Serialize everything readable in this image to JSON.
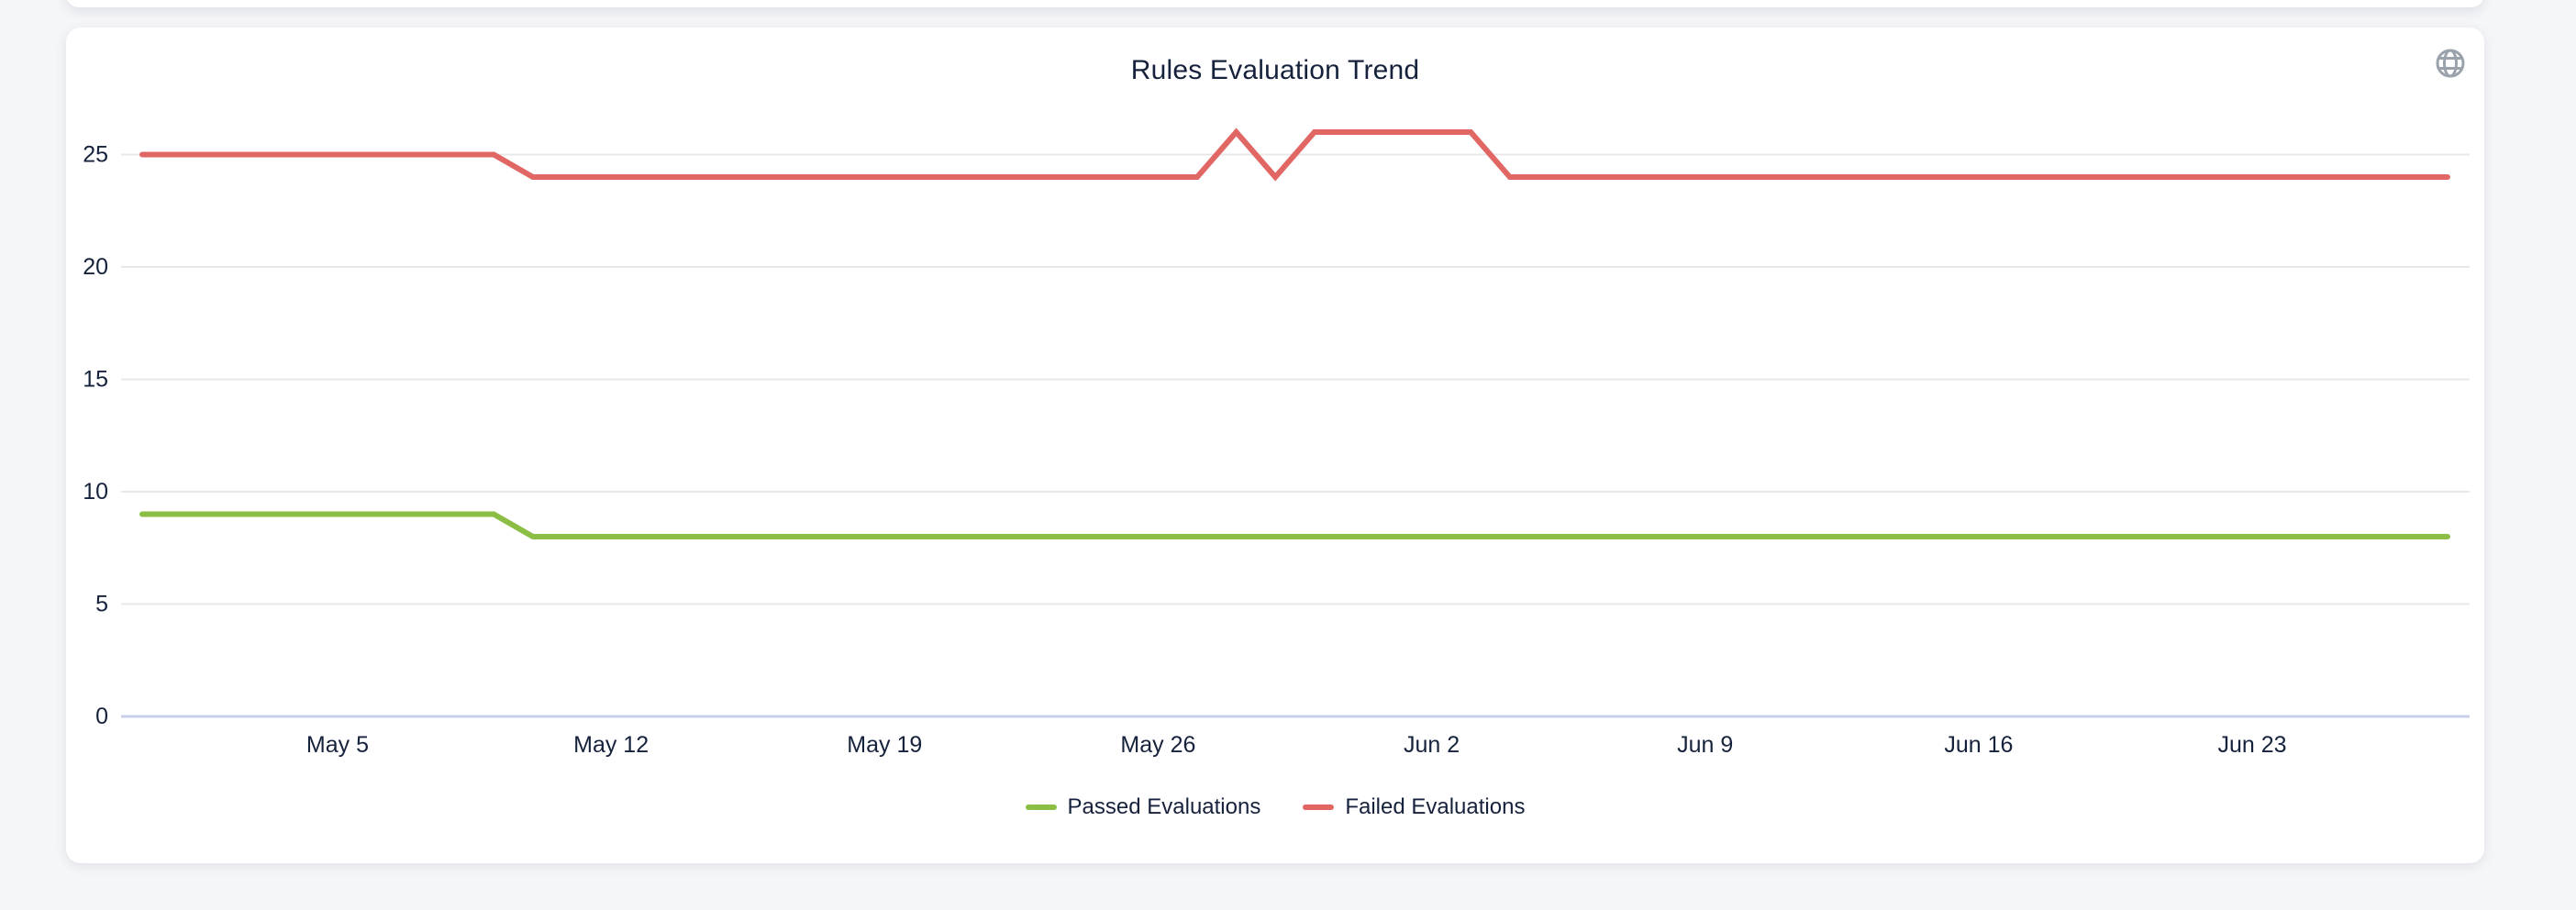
{
  "page": {
    "background_color": "#f5f6f9",
    "card_color": "#ffffff"
  },
  "header": {
    "globe_icon": "globe-icon",
    "globe_color": "#9aa2ac"
  },
  "chart_data": {
    "type": "line",
    "title": "Rules Evaluation Trend",
    "xlabel": "",
    "ylabel": "",
    "grid": true,
    "legend_position": "bottom",
    "ylim": [
      0,
      27
    ],
    "yticks": [
      0,
      5,
      10,
      15,
      20,
      25
    ],
    "xticks": {
      "labels": [
        "May 5",
        "May 12",
        "May 19",
        "May 26",
        "Jun 2",
        "Jun 9",
        "Jun 16",
        "Jun 23"
      ],
      "indices": [
        5,
        12,
        19,
        26,
        33,
        40,
        47,
        54
      ]
    },
    "x": [
      "Apr 30",
      "May 1",
      "May 2",
      "May 3",
      "May 4",
      "May 5",
      "May 6",
      "May 7",
      "May 8",
      "May 9",
      "May 10",
      "May 11",
      "May 12",
      "May 13",
      "May 14",
      "May 15",
      "May 16",
      "May 17",
      "May 18",
      "May 19",
      "May 20",
      "May 21",
      "May 22",
      "May 23",
      "May 24",
      "May 25",
      "May 26",
      "May 27",
      "May 28",
      "May 29",
      "May 30",
      "May 31",
      "Jun 1",
      "Jun 2",
      "Jun 3",
      "Jun 4",
      "Jun 5",
      "Jun 6",
      "Jun 7",
      "Jun 8",
      "Jun 9",
      "Jun 10",
      "Jun 11",
      "Jun 12",
      "Jun 13",
      "Jun 14",
      "Jun 15",
      "Jun 16",
      "Jun 17",
      "Jun 18",
      "Jun 19",
      "Jun 20",
      "Jun 21",
      "Jun 22",
      "Jun 23",
      "Jun 24",
      "Jun 25",
      "Jun 26",
      "Jun 27",
      "Jun 28"
    ],
    "series": [
      {
        "name": "Passed Evaluations",
        "color": "#8cbd45",
        "values": [
          9,
          9,
          9,
          9,
          9,
          9,
          9,
          9,
          9,
          9,
          8,
          8,
          8,
          8,
          8,
          8,
          8,
          8,
          8,
          8,
          8,
          8,
          8,
          8,
          8,
          8,
          8,
          8,
          8,
          8,
          8,
          8,
          8,
          8,
          8,
          8,
          8,
          8,
          8,
          8,
          8,
          8,
          8,
          8,
          8,
          8,
          8,
          8,
          8,
          8,
          8,
          8,
          8,
          8,
          8,
          8,
          8,
          8,
          8,
          8
        ]
      },
      {
        "name": "Failed Evaluations",
        "color": "#e16765",
        "values": [
          25,
          25,
          25,
          25,
          25,
          25,
          25,
          25,
          25,
          25,
          24,
          24,
          24,
          24,
          24,
          24,
          24,
          24,
          24,
          24,
          24,
          24,
          24,
          24,
          24,
          24,
          24,
          24,
          26,
          24,
          26,
          26,
          26,
          26,
          26,
          24,
          24,
          24,
          24,
          24,
          24,
          24,
          24,
          24,
          24,
          24,
          24,
          24,
          24,
          24,
          24,
          24,
          24,
          24,
          24,
          24,
          24,
          24,
          24,
          24
        ]
      }
    ],
    "axis_colors": {
      "grid": "#e8e8e8",
      "zero_line": "#c7d0e8",
      "tick_text": "#16223c"
    }
  }
}
